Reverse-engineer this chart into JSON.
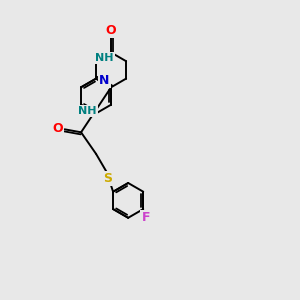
{
  "background_color": "#e8e8e8",
  "bond_color": "#000000",
  "atom_colors": {
    "O": "#ff0000",
    "N": "#0000cc",
    "NH": "#008080",
    "S": "#ccaa00",
    "F": "#cc44cc",
    "C": "#000000"
  },
  "figsize": [
    3.0,
    3.0
  ],
  "dpi": 100
}
